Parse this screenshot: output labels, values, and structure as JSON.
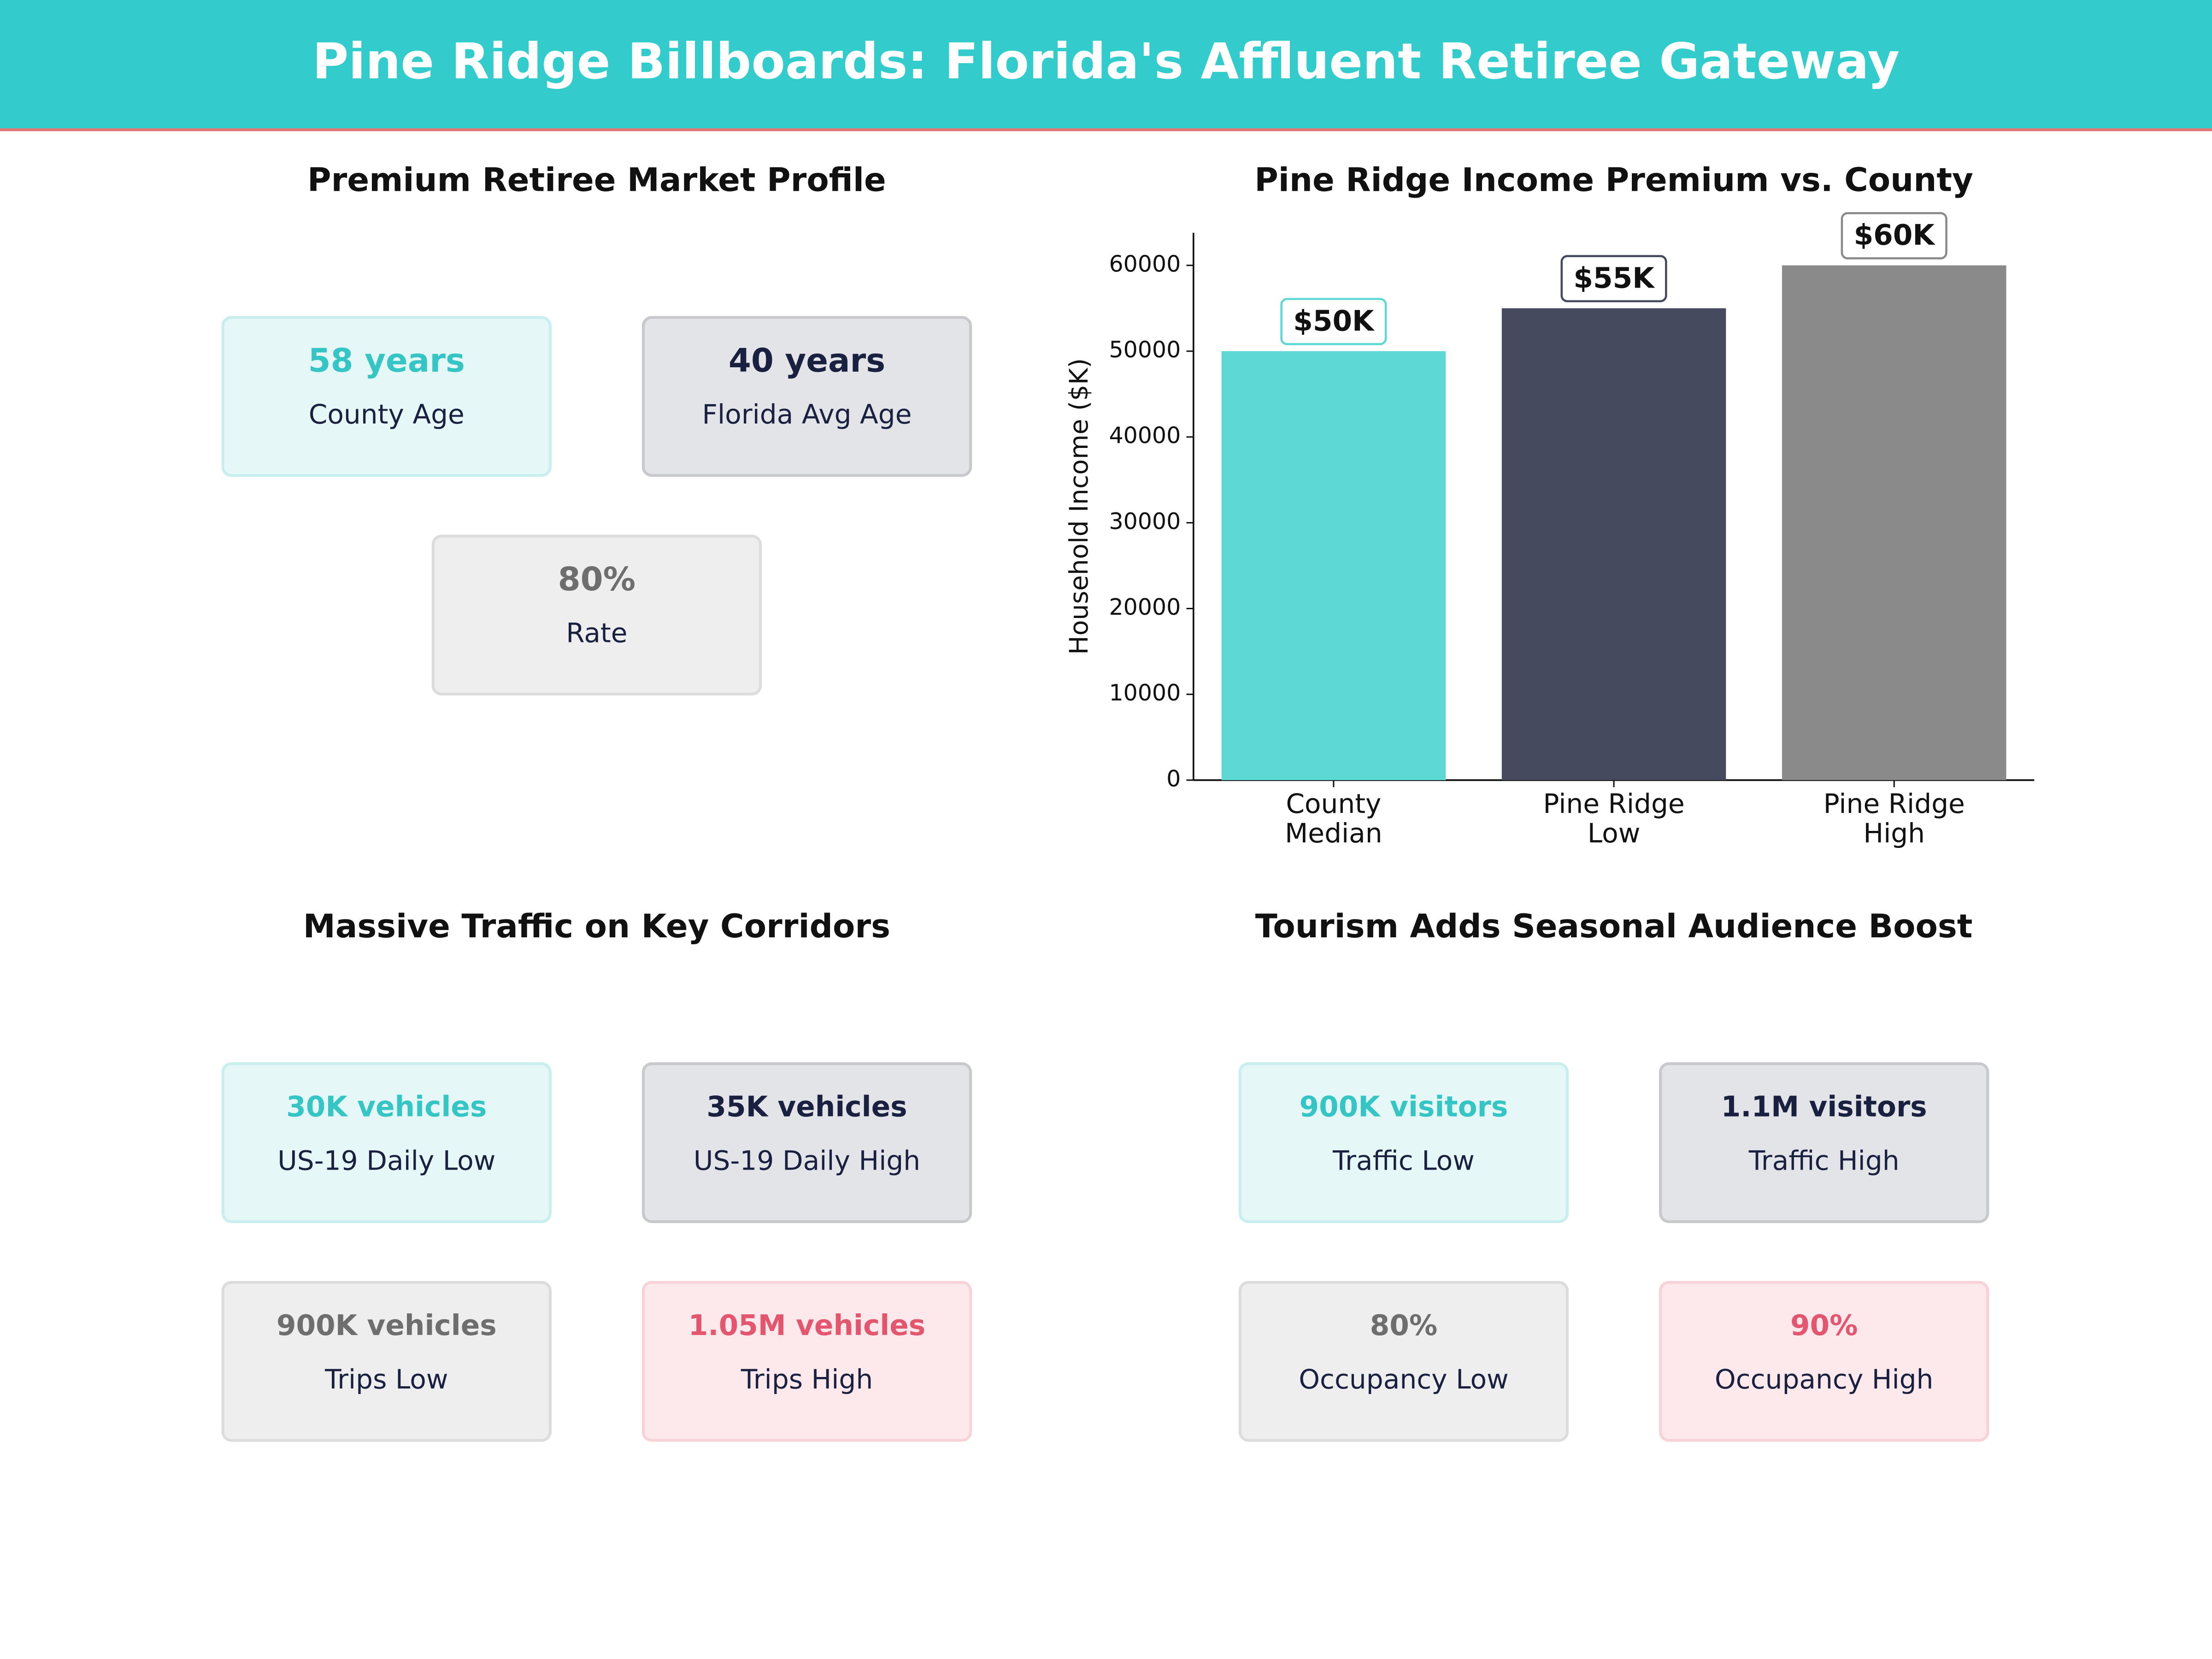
{
  "header": {
    "title": "Pine Ridge Billboards: Florida's Affluent Retiree Gateway"
  },
  "market_profile": {
    "title": "Premium Retiree Market Profile",
    "cards": [
      {
        "value": "58 years",
        "label": "County Age"
      },
      {
        "value": "40 years",
        "label": "Florida Avg Age"
      },
      {
        "value": "80%",
        "label": "Rate"
      }
    ]
  },
  "chart_data": {
    "type": "bar",
    "title": "Pine Ridge Income Premium vs. County",
    "ylabel": "Household Income ($K)",
    "categories": [
      "County\nMedian",
      "Pine Ridge\nLow",
      "Pine Ridge\nHigh"
    ],
    "values": [
      50000,
      55000,
      60000
    ],
    "value_labels": [
      "$50K",
      "$55K",
      "$60K"
    ],
    "colors": [
      "#5dd8d5",
      "#454a5f",
      "#8a8a8a"
    ],
    "ylim": [
      0,
      63800
    ],
    "yticks": [
      0,
      10000,
      20000,
      30000,
      40000,
      50000,
      60000
    ],
    "grid": false
  },
  "traffic": {
    "title": "Massive Traffic on Key Corridors",
    "cards": [
      {
        "value": "30K vehicles",
        "label": "US-19 Daily Low"
      },
      {
        "value": "35K vehicles",
        "label": "US-19 Daily High"
      },
      {
        "value": "900K vehicles",
        "label": "Trips Low"
      },
      {
        "value": "1.05M vehicles",
        "label": "Trips High"
      }
    ]
  },
  "tourism": {
    "title": "Tourism Adds Seasonal Audience Boost",
    "cards": [
      {
        "value": "900K visitors",
        "label": "Traffic Low"
      },
      {
        "value": "1.1M visitors",
        "label": "Traffic High"
      },
      {
        "value": "80%",
        "label": "Occupancy Low"
      },
      {
        "value": "90%",
        "label": "Occupancy High"
      }
    ]
  }
}
